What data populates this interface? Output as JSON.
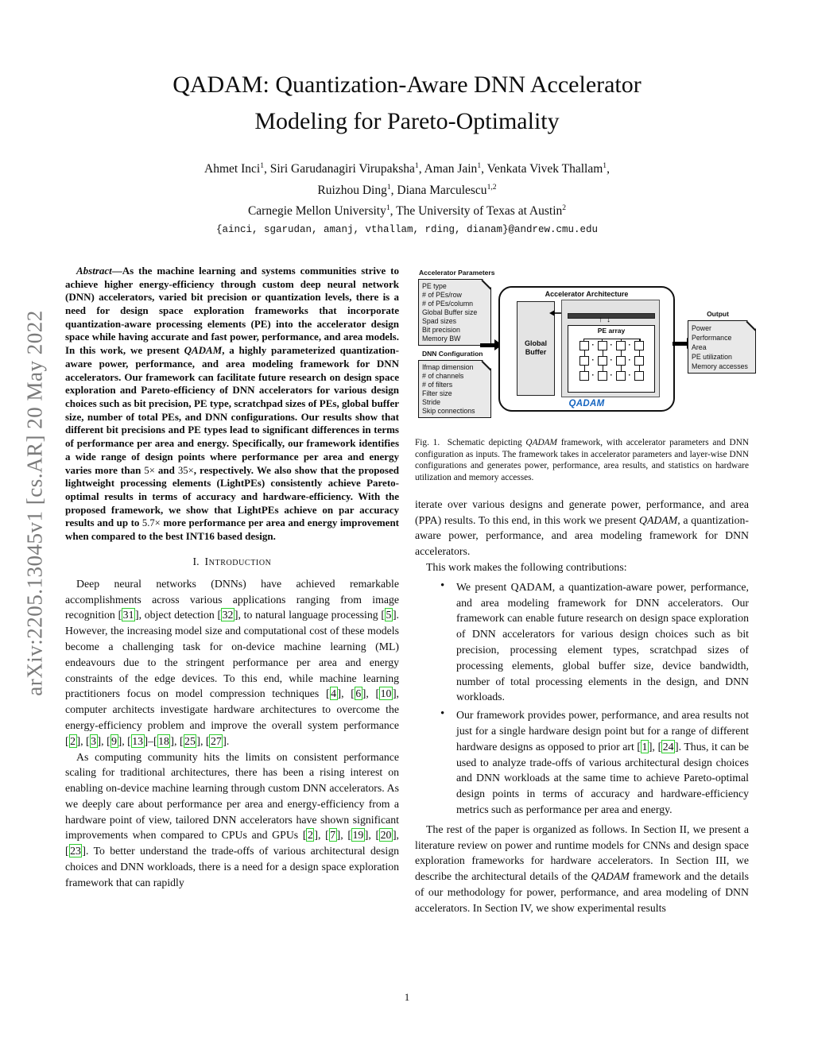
{
  "arxiv_stamp": "arXiv:2205.13045v1  [cs.AR]  20 May 2022",
  "title": {
    "line1": "QADAM: Quantization-Aware DNN Accelerator",
    "line2": "Modeling for Pareto-Optimality"
  },
  "authors": {
    "line1": [
      "Ahmet Inci",
      {
        "sup": "1"
      },
      ", Siri Garudanagiri Virupaksha",
      {
        "sup": "1"
      },
      ", Aman Jain",
      {
        "sup": "1"
      },
      ", Venkata Vivek Thallam",
      {
        "sup": "1"
      },
      ","
    ],
    "line2": [
      "Ruizhou Ding",
      {
        "sup": "1"
      },
      ", Diana Marculescu",
      {
        "sup": "1,2"
      }
    ],
    "line3": [
      "Carnegie Mellon University",
      {
        "sup": "1"
      },
      ", The University of Texas at Austin",
      {
        "sup": "2"
      }
    ],
    "email": "{ainci, sgarudan, amanj, vthallam, rding, dianam}@andrew.cmu.edu"
  },
  "abstract": {
    "segments": [
      {
        "bi": "Abstract"
      },
      "—As the machine learning and systems communities strive to achieve higher energy-efficiency through custom deep neural network (DNN) accelerators, varied bit precision or quantization levels, there is a need for design space exploration frameworks that incorporate quantization-aware processing elements (PE) into the accelerator design space while having accurate and fast power, performance, and area models. In this work, we present ",
      {
        "bi": "QADAM"
      },
      ", a highly parameterized quantization-aware power, performance, and area modeling framework for DNN accelerators. Our framework can facilitate future research on design space exploration and Pareto-efficiency of DNN accelerators for various design choices such as bit precision, PE type, scratchpad sizes of PEs, global buffer size, number of total PEs, and DNN configurations. Our results show that different bit precisions and PE types lead to significant differences in terms of performance per area and energy. Specifically, our framework identifies a wide range of design points where performance per area and energy varies more than ",
      {
        "m": "5×"
      },
      " and ",
      {
        "m": "35×"
      },
      ", respectively. We also show that the proposed lightweight processing elements (LightPEs) consistently achieve Pareto-optimal results in terms of accuracy and hardware-efficiency. With the proposed framework, we show that LightPEs achieve on par accuracy results and up to ",
      {
        "m": "5.7×"
      },
      " more performance per area and energy improvement when compared to the best INT16 based design."
    ]
  },
  "section1": {
    "num": "I.",
    "title": "Introduction"
  },
  "intro": {
    "p1": [
      "Deep neural networks (DNNs) have achieved remarkable accomplishments across various applications ranging from image recognition ",
      {
        "c": "31"
      },
      ", object detection ",
      {
        "c": "32"
      },
      ", to natural language processing ",
      {
        "c": "5"
      },
      ". However, the increasing model size and computational cost of these models become a challenging task for on-device machine learning (ML) endeavours due to the stringent performance per area and energy constraints of the edge devices. To this end, while machine learning practitioners focus on model compression techniques ",
      {
        "c": "4"
      },
      ", ",
      {
        "c": "6"
      },
      ", ",
      {
        "c": "10"
      },
      ", computer architects investigate hardware architectures to overcome the energy-efficiency problem and improve the overall system performance ",
      {
        "c": "2"
      },
      ", ",
      {
        "c": "3"
      },
      ", ",
      {
        "c": "9"
      },
      ", ",
      {
        "c": "13"
      },
      "–",
      {
        "c": "18"
      },
      ", ",
      {
        "c": "25"
      },
      ", ",
      {
        "c": "27"
      },
      "."
    ],
    "p2": [
      "As computing community hits the limits on consistent performance scaling for traditional architectures, there has been a rising interest on enabling on-device machine learning through custom DNN accelerators. As we deeply care about performance per area and energy-efficiency from a hardware point of view, tailored DNN accelerators have shown significant improvements when compared to CPUs and GPUs ",
      {
        "c": "2"
      },
      ", ",
      {
        "c": "7"
      },
      ", ",
      {
        "c": "19"
      },
      ", ",
      {
        "c": "20"
      },
      ", ",
      {
        "c": "23"
      },
      ". To better understand the trade-offs of various architectural design choices and DNN workloads, there is a need for a design space exploration framework that can rapidly"
    ]
  },
  "figure": {
    "inputs": [
      {
        "label": "Accelerator Parameters",
        "items": [
          "PE type",
          "# of PEs/row",
          "# of PEs/column",
          "Global Buffer size",
          "Spad sizes",
          "Bit precision",
          "Memory BW"
        ]
      },
      {
        "label": "DNN Configuration",
        "items": [
          "Ifmap dimension",
          "# of channels",
          "# of filters",
          "Filter size",
          "Stride",
          "Skip connections"
        ]
      }
    ],
    "architecture_label": "Accelerator Architecture",
    "global_buffer_label": "Global Buffer",
    "pe_array_label": "PE array",
    "brand": "QADAM",
    "brand_color": "#1565c0",
    "up_arrow": "↑",
    "down_arrow": "↓",
    "output": {
      "label": "Output",
      "items": [
        "Power",
        "Performance",
        "Area",
        "PE utilization",
        "Memory accesses"
      ]
    },
    "grid": {
      "rows": 3,
      "cols": 4
    },
    "caption": [
      "Fig. 1.  Schematic depicting ",
      {
        "i": "QADAM"
      },
      " framework, with accelerator parameters and DNN configuration as inputs. The framework takes in accelerator parameters and layer-wise DNN configurations and generates power, performance, area results, and statistics on hardware utilization and memory accesses."
    ]
  },
  "rightcol": {
    "p1": [
      "iterate over various designs and generate power, performance, and area (PPA) results. To this end, in this work we present ",
      {
        "i": "QADAM"
      },
      ", a quantization-aware power, performance, and area modeling framework for DNN accelerators."
    ],
    "p2": [
      "This work makes the following contributions:"
    ],
    "bullets": [
      [
        "We present QADAM, a quantization-aware power, performance, and area modeling framework for DNN accelerators. Our framework can enable future research on design space exploration of DNN accelerators for various design choices such as bit precision, processing element types, scratchpad sizes of processing elements, global buffer size, device bandwidth, number of total processing elements in the design, and DNN workloads."
      ],
      [
        "Our framework provides power, performance, and area results not just for a single hardware design point but for a range of different hardware designs as opposed to prior art ",
        {
          "c": "1"
        },
        ", ",
        {
          "c": "24"
        },
        ". Thus, it can be used to analyze trade-offs of various architectural design choices and DNN workloads at the same time to achieve Pareto-optimal design points in terms of accuracy and hardware-efficiency metrics such as performance per area and energy."
      ]
    ],
    "p3": [
      "The rest of the paper is organized as follows. In Section II, we present a literature review on power and runtime models for CNNs and design space exploration frameworks for hardware accelerators. In Section III, we describe the architectural details of the ",
      {
        "i": "QADAM"
      },
      " framework and the details of our methodology for power, performance, and area modeling of DNN accelerators. In Section IV, we show experimental results"
    ]
  },
  "footer": {
    "page_number": "1"
  }
}
